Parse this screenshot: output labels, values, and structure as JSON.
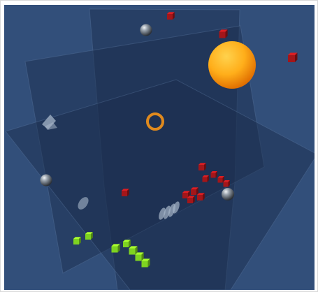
{
  "scene": {
    "background_color": "#324f7a",
    "plane_color": "#1b2d4c",
    "sun": {
      "name": "sun-sphere",
      "colors": {
        "core": "#ffd24d",
        "mid": "#ffae1a",
        "edge": "#e06e00"
      }
    },
    "target_ring": {
      "name": "target-ring",
      "color": "#e08a1e"
    },
    "metal_sphere_color": "#8f98a2",
    "red_cube_color": "#a3161a",
    "green_cube_color": "#7ed321",
    "ghost_piece_color": "#a7b7c9"
  }
}
